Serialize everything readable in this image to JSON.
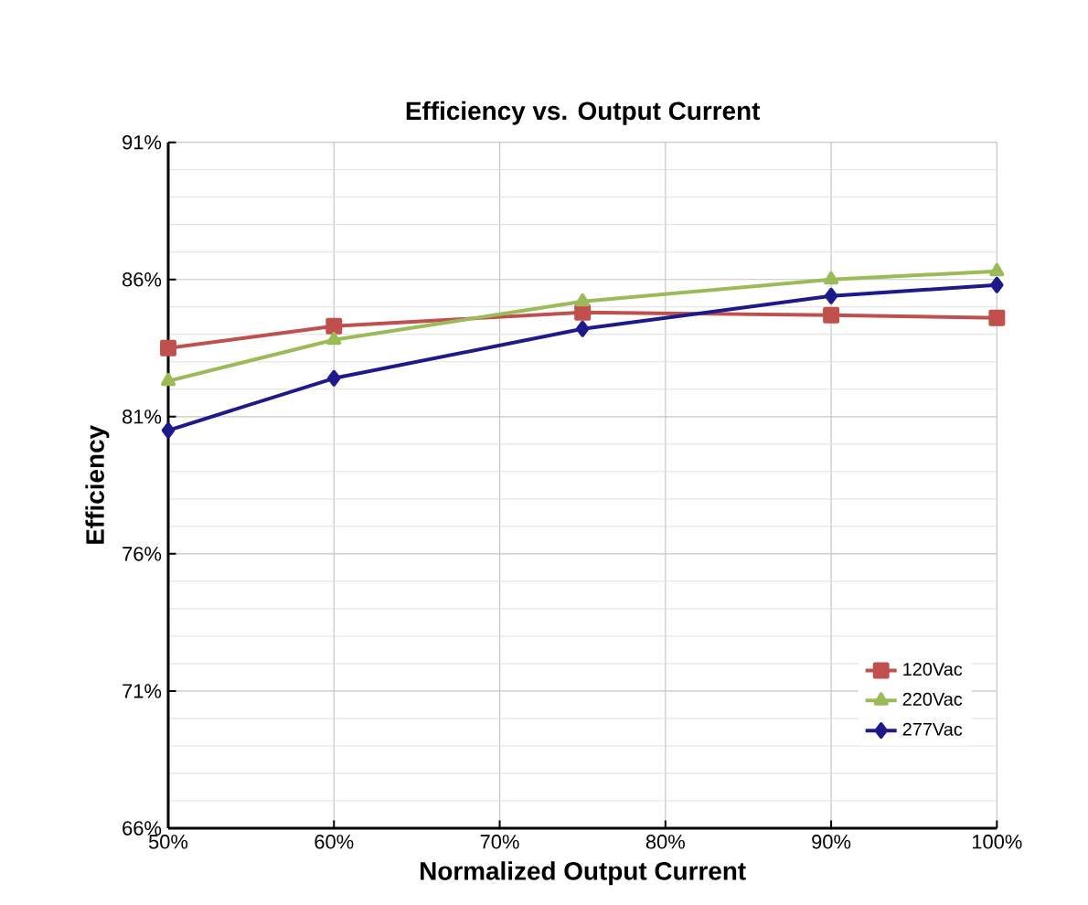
{
  "chart_data": {
    "type": "line",
    "title": "Efficiency vs. Output Current",
    "xlabel": "Normalized Output Current",
    "ylabel": "Efficiency",
    "x": [
      50,
      60,
      75,
      90,
      100
    ],
    "series": [
      {
        "name": "120Vac",
        "color": "#c0504d",
        "marker": "square",
        "values": [
          83.5,
          84.3,
          84.8,
          84.7,
          84.6
        ]
      },
      {
        "name": "220Vac",
        "color": "#9bbb59",
        "marker": "triangle",
        "values": [
          82.3,
          83.8,
          85.2,
          86.0,
          86.3
        ]
      },
      {
        "name": "277Vac",
        "color": "#1f1a8c",
        "marker": "diamond",
        "values": [
          80.5,
          82.4,
          84.2,
          85.4,
          85.8
        ]
      }
    ],
    "xlim": [
      50,
      100
    ],
    "ylim": [
      66,
      91
    ],
    "xticks": [
      {
        "value": 50,
        "label": "50%"
      },
      {
        "value": 60,
        "label": "60%"
      },
      {
        "value": 70,
        "label": "70%"
      },
      {
        "value": 80,
        "label": "80%"
      },
      {
        "value": 90,
        "label": "90%"
      },
      {
        "value": 100,
        "label": "100%"
      }
    ],
    "yticks": [
      {
        "value": 66,
        "label": "66%"
      },
      {
        "value": 71,
        "label": "71%"
      },
      {
        "value": 76,
        "label": "76%"
      },
      {
        "value": 81,
        "label": "81%"
      },
      {
        "value": 86,
        "label": "86%"
      },
      {
        "value": 91,
        "label": "91%"
      }
    ],
    "grid": true,
    "legend": "bottom right",
    "line_style": "solid"
  }
}
